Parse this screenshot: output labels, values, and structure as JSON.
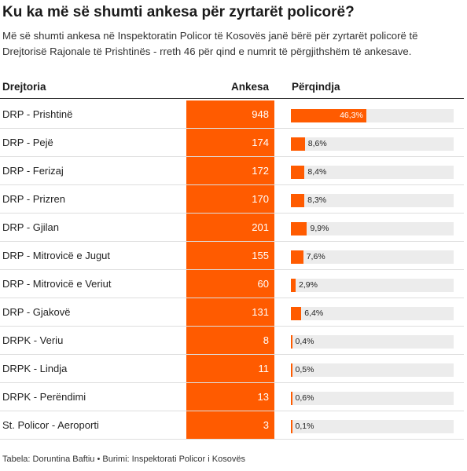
{
  "title": "Ku ka më së shumti ankesa për zyrtarët policorë?",
  "subtitle": "Më së shumti ankesa në Inspektoratin Policor të Kosovës janë bërë për zyrtarët policorë të Drejtorisë Rajonale të Prishtinës - rreth 46 për qind e numrit të përgjithshëm të ankesave.",
  "footer": "Tabela: Doruntina Baftiu • Burimi: Inspektorati Policor i Kosovës",
  "colors": {
    "accent": "#ff5b00",
    "track": "#ececec",
    "rule": "#333333",
    "row_line": "#dedede"
  },
  "chart_data": {
    "type": "table",
    "columns": [
      "Drejtoria",
      "Ankesa",
      "Përqindja"
    ],
    "rows": [
      {
        "name": "DRP - Prishtinë",
        "value": "948",
        "pct_label": "46,3%",
        "pct": 46.3
      },
      {
        "name": "DRP - Pejë",
        "value": "174",
        "pct_label": "8,6%",
        "pct": 8.6
      },
      {
        "name": "DRP - Ferizaj",
        "value": "172",
        "pct_label": "8,4%",
        "pct": 8.4
      },
      {
        "name": "DRP - Prizren",
        "value": "170",
        "pct_label": "8,3%",
        "pct": 8.3
      },
      {
        "name": "DRP - Gjilan",
        "value": "201",
        "pct_label": "9,9%",
        "pct": 9.9
      },
      {
        "name": "DRP - Mitrovicë e Jugut",
        "value": "155",
        "pct_label": "7,6%",
        "pct": 7.6
      },
      {
        "name": "DRP - Mitrovicë e Veriut",
        "value": "60",
        "pct_label": "2,9%",
        "pct": 2.9
      },
      {
        "name": "DRP - Gjakovë",
        "value": "131",
        "pct_label": "6,4%",
        "pct": 6.4
      },
      {
        "name": "DRPK - Veriu",
        "value": "8",
        "pct_label": "0,4%",
        "pct": 0.4
      },
      {
        "name": "DRPK - Lindja",
        "value": "11",
        "pct_label": "0,5%",
        "pct": 0.5
      },
      {
        "name": "DRPK - Perëndimi",
        "value": "13",
        "pct_label": "0,6%",
        "pct": 0.6
      },
      {
        "name": "St. Policor - Aeroporti",
        "value": "3",
        "pct_label": "0,1%",
        "pct": 0.1
      }
    ],
    "pct_max": 100
  }
}
